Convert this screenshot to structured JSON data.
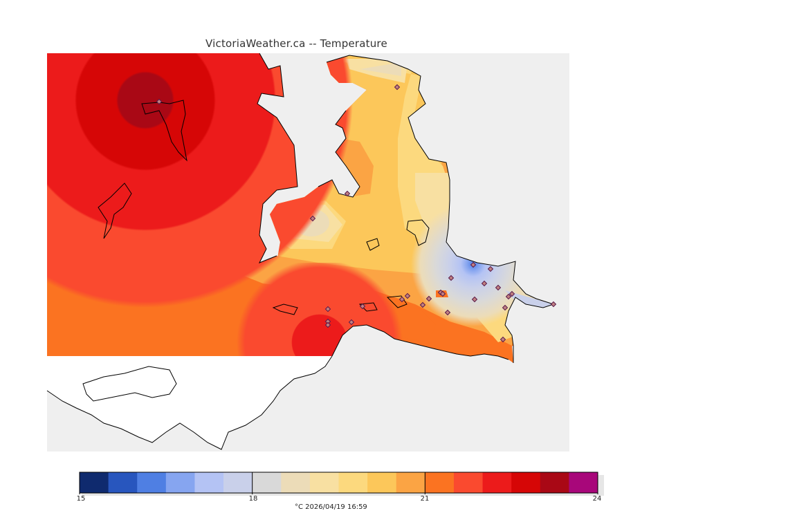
{
  "title": "VictoriaWeather.ca -- Temperature",
  "legend": {
    "min": 15,
    "max": 24,
    "step": 0.5,
    "labels": [
      "15",
      "18",
      "21",
      "24"
    ],
    "label_values": [
      15,
      18,
      21,
      24
    ],
    "colors": [
      "#0f2a6e",
      "#2856be",
      "#4f7fe3",
      "#86a5f0",
      "#b4c3f4",
      "#c9d0ea",
      "#d9d9d9",
      "#ecdcb8",
      "#f8e0a2",
      "#fcd97e",
      "#fcc75a",
      "#fba444",
      "#fb7321",
      "#fa4a2f",
      "#ec1b1b",
      "#d60606",
      "#a90815",
      "#a8077a"
    ],
    "units_label": "°C  2026/04/19 16:59"
  },
  "map": {
    "ocean_color": "#efefef",
    "no_data_land_color": "#ffffff",
    "station_count": 27
  }
}
